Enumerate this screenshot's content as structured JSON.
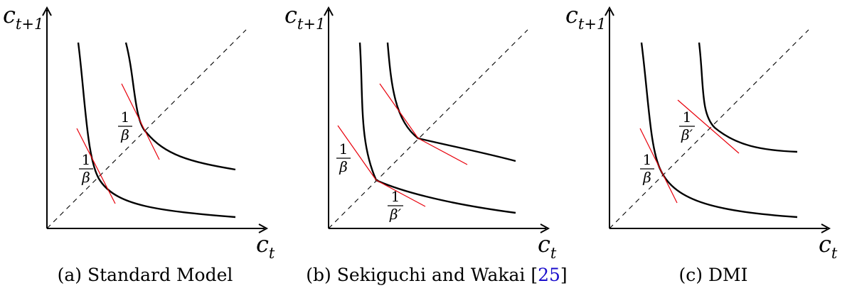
{
  "panels": [
    {
      "caption": "(a) Standard Model",
      "y_axis": "c",
      "y_axis_sub": "t+1",
      "x_axis": "c",
      "x_axis_sub": "t",
      "labels": [
        {
          "num": "1",
          "den": "β"
        },
        {
          "num": "1",
          "den": "β"
        }
      ]
    },
    {
      "caption_pre": "(b) Sekiguchi and Wakai [",
      "caption_ref": "25",
      "caption_post": "]",
      "y_axis": "c",
      "y_axis_sub": "t+1",
      "x_axis": "c",
      "x_axis_sub": "t",
      "labels": [
        {
          "num": "1",
          "den": "β"
        },
        {
          "num": "1",
          "den": "β′"
        }
      ]
    },
    {
      "caption": "(c) DMI",
      "y_axis": "c",
      "y_axis_sub": "t+1",
      "x_axis": "c",
      "x_axis_sub": "t",
      "labels": [
        {
          "num": "1",
          "den": "β′"
        },
        {
          "num": "1",
          "den": "β"
        }
      ]
    }
  ]
}
